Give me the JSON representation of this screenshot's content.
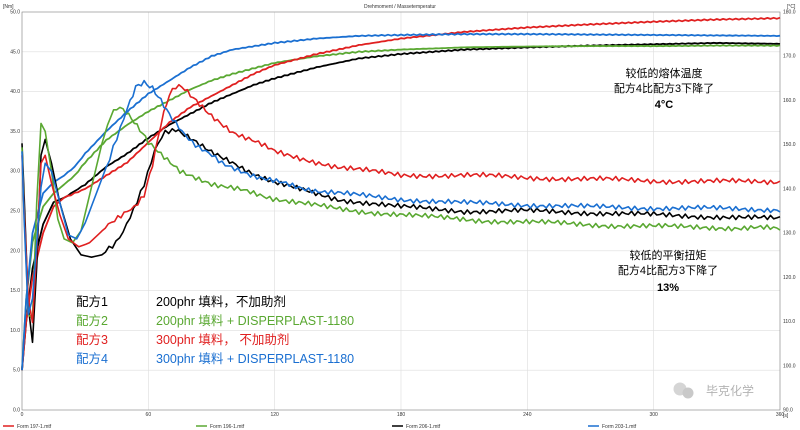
{
  "chart_data": {
    "type": "line",
    "title": "Drehmoment / Massetemperatur",
    "y_left_unit": "[Nm]",
    "y_right_unit": "[°C]",
    "x_unit": "[s]",
    "xlim": [
      0,
      360
    ],
    "ylim_left": [
      0,
      50
    ],
    "ylim_right": [
      90,
      180
    ],
    "x_ticks": [
      "0",
      "60",
      "120",
      "180",
      "240",
      "300",
      "360"
    ],
    "y_left_ticks": [
      "0.0",
      "5.0",
      "10.0",
      "15.0",
      "20.0",
      "25.0",
      "30.0",
      "35.0",
      "40.0",
      "45.0",
      "50.0"
    ],
    "y_right_ticks": [
      "90.0",
      "100.0",
      "110.0",
      "120.0",
      "130.0",
      "140.0",
      "150.0",
      "160.0",
      "170.0",
      "180.0"
    ],
    "grid": true,
    "legend_entries": [
      {
        "label": "配方1",
        "desc": "200phr 填料，不加助剂",
        "color": "#000000"
      },
      {
        "label": "配方2",
        "desc": "200phr 填料 + DISPERPLAST-1180",
        "color": "#5aa832"
      },
      {
        "label": "配方3",
        "desc": "300phr 填料，  不加助剂",
        "color": "#e02020"
      },
      {
        "label": "配方4",
        "desc": "300phr 填料 + DISPERPLAST-1180",
        "color": "#1a6fd1"
      }
    ],
    "bottom_legend": [
      {
        "name": "Form 197-1.mtf",
        "color": "#e02020"
      },
      {
        "name": "Form 196-1.mtf",
        "color": "#5aa832"
      },
      {
        "name": "Form 206-1.mtf",
        "color": "#000000"
      },
      {
        "name": "Form 203-1.mtf",
        "color": "#1a6fd1"
      }
    ],
    "annotations": [
      {
        "lines": [
          "较低的熔体温度",
          "配方4比配方3下降了"
        ],
        "bold": "4°C"
      },
      {
        "lines": [
          "较低的平衡扭矩",
          "配方4比配方3下降了"
        ],
        "bold": "13%"
      }
    ],
    "watermark": "毕克化学",
    "series": [
      {
        "name": "Form 206-1.mtf",
        "kind": "torque",
        "color": "#000000",
        "x": [
          0,
          1,
          3,
          5,
          7,
          9,
          11,
          14,
          18,
          23,
          28,
          33,
          38,
          43,
          48,
          53,
          58,
          63,
          68,
          73,
          80,
          90,
          100,
          120,
          150,
          180,
          210,
          240,
          270,
          300,
          330,
          360
        ],
        "y": [
          33.5,
          27,
          13,
          8.5,
          18,
          32,
          34,
          31,
          26,
          21.5,
          19.5,
          19.2,
          19.5,
          20.5,
          22.5,
          25,
          28.5,
          32.5,
          35,
          35.3,
          34.3,
          32.5,
          31,
          28.5,
          26.5,
          25.5,
          25,
          25,
          24.8,
          24.5,
          24.3,
          24
        ]
      },
      {
        "name": "Form 196-1.mtf",
        "kind": "torque",
        "color": "#5aa832",
        "x": [
          0,
          1,
          3,
          5,
          7,
          9,
          11,
          14,
          17,
          20,
          24,
          28,
          33,
          38,
          42,
          45,
          48,
          52,
          56,
          60,
          66,
          75,
          90,
          110,
          130,
          160,
          190,
          220,
          250,
          280,
          310,
          340,
          360
        ],
        "y": [
          33,
          25,
          12,
          11.5,
          26,
          36,
          35,
          30,
          24,
          21.5,
          21,
          22.5,
          28,
          33.5,
          37,
          38,
          37.8,
          36.8,
          35.2,
          33.5,
          32,
          30,
          28.5,
          27.2,
          26,
          25,
          24.3,
          23.8,
          23.5,
          23.2,
          23,
          22.9,
          22.8
        ]
      },
      {
        "name": "Form 197-1.mtf",
        "kind": "torque",
        "color": "#e02020",
        "x": [
          0,
          1,
          3,
          5,
          7,
          9,
          11,
          14,
          18,
          22,
          27,
          32,
          38,
          44,
          50,
          55,
          58,
          62,
          66,
          70,
          73,
          76,
          80,
          90,
          100,
          120,
          150,
          180,
          210,
          240,
          270,
          300,
          330,
          360
        ],
        "y": [
          32,
          25,
          14,
          11,
          20,
          31,
          32,
          28.5,
          24.5,
          21.5,
          20.5,
          21,
          22.5,
          23.8,
          25,
          26,
          27,
          31,
          36,
          39.5,
          40.5,
          40.5,
          39.5,
          37,
          35,
          32.5,
          30.5,
          29.5,
          29.5,
          29.2,
          29,
          28.8,
          28.7,
          28.7
        ]
      },
      {
        "name": "Form 203-1.mtf",
        "kind": "torque",
        "color": "#1a6fd1",
        "x": [
          0,
          1,
          3,
          5,
          7,
          9,
          11,
          14,
          18,
          22,
          26,
          30,
          35,
          40,
          45,
          50,
          54,
          58,
          62,
          66,
          70,
          76,
          84,
          95,
          110,
          130,
          150,
          180,
          210,
          240,
          270,
          300,
          330,
          360
        ],
        "y": [
          32.5,
          24,
          12,
          14,
          21,
          28,
          31,
          30,
          26,
          22,
          21.5,
          23.5,
          27,
          30.5,
          34,
          38,
          40.5,
          41,
          40.5,
          39,
          37,
          35,
          33,
          31,
          29.5,
          28,
          27.2,
          26.5,
          26,
          25.8,
          25.5,
          25.4,
          25.3,
          25.2
        ]
      },
      {
        "name": "Form 206-1.mtf",
        "kind": "temperature",
        "color": "#000000",
        "x": [
          0,
          2,
          5,
          10,
          15,
          20,
          25,
          30,
          40,
          50,
          60,
          70,
          80,
          90,
          100,
          110,
          120,
          140,
          160,
          180,
          210,
          240,
          270,
          300,
          330,
          360
        ],
        "y": [
          99,
          110,
          122,
          132,
          137,
          138,
          139.5,
          141,
          145,
          148,
          151.5,
          154.5,
          157,
          159.5,
          161.5,
          163.5,
          165,
          167.5,
          169.5,
          170.5,
          171.5,
          172,
          172.4,
          172.7,
          173,
          172.8
        ]
      },
      {
        "name": "Form 196-1.mtf",
        "kind": "temperature",
        "color": "#5aa832",
        "x": [
          0,
          2,
          5,
          10,
          15,
          20,
          25,
          30,
          40,
          50,
          60,
          70,
          80,
          90,
          100,
          120,
          140,
          160,
          180,
          210,
          240,
          270,
          300,
          330,
          360
        ],
        "y": [
          99,
          115,
          128,
          136,
          139,
          141,
          143,
          146,
          151,
          154.5,
          157.5,
          160,
          162.5,
          164.5,
          166,
          168.5,
          170,
          171,
          171.5,
          172,
          172.2,
          172.3,
          172.3,
          172.4,
          172.4
        ]
      },
      {
        "name": "Form 197-1.mtf",
        "kind": "temperature",
        "color": "#e02020",
        "x": [
          0,
          2,
          5,
          10,
          15,
          20,
          25,
          30,
          40,
          50,
          60,
          70,
          80,
          90,
          100,
          110,
          120,
          140,
          160,
          180,
          210,
          240,
          270,
          300,
          330,
          360
        ],
        "y": [
          99,
          110,
          120,
          130,
          136,
          138,
          139,
          140,
          143,
          146,
          150.5,
          155,
          158.5,
          161,
          163.5,
          166,
          168,
          170.5,
          172.5,
          174,
          175.5,
          176.5,
          177.2,
          177.8,
          178.3,
          178.6
        ]
      },
      {
        "name": "Form 203-1.mtf",
        "kind": "temperature",
        "color": "#1a6fd1",
        "x": [
          0,
          2,
          5,
          10,
          15,
          20,
          25,
          30,
          40,
          50,
          60,
          70,
          80,
          90,
          100,
          120,
          140,
          160,
          180,
          210,
          240,
          270,
          300,
          330,
          360
        ],
        "y": [
          99,
          115,
          130,
          139,
          141.5,
          143,
          145,
          148,
          153,
          157.5,
          161.5,
          164.5,
          167.5,
          170,
          171.5,
          173,
          174,
          174.6,
          174.8,
          175,
          175,
          174.9,
          174.8,
          174.7,
          174.6
        ]
      }
    ]
  }
}
